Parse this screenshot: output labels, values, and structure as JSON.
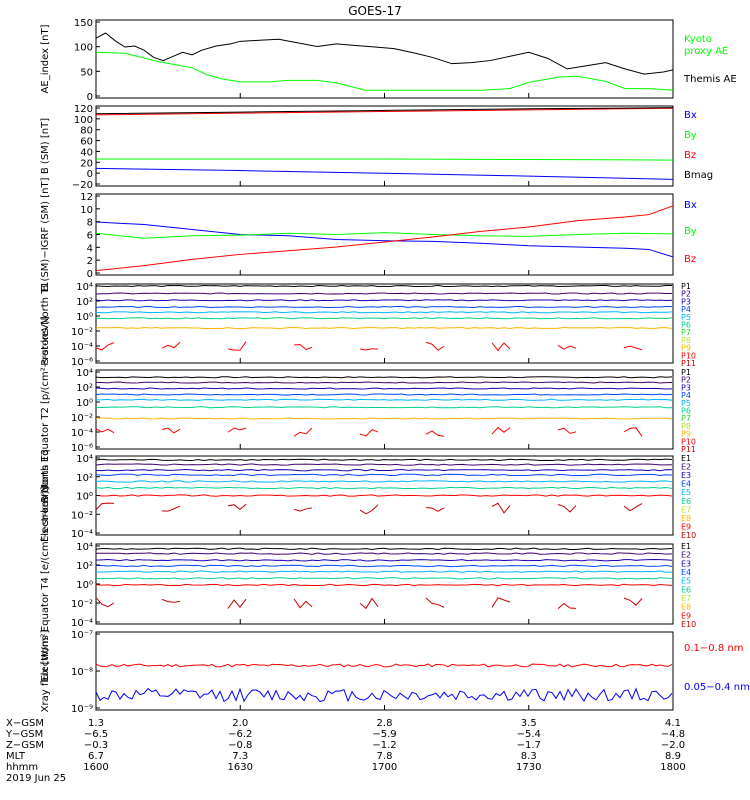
{
  "title": "GOES-17",
  "chart_data": [
    {
      "type": "line",
      "ylabel": "AE_index [nT]",
      "yticks": [
        "150",
        "100",
        "50",
        "0"
      ],
      "ylim": [
        0,
        150
      ],
      "series": [
        {
          "name": "Kyoto proxy AE",
          "color": "#00ff00",
          "x": [
            1600,
            1603,
            1606,
            1610,
            1613,
            1616,
            1620,
            1623,
            1626,
            1630,
            1636,
            1640,
            1646,
            1650,
            1656,
            1700,
            1706,
            1710,
            1716,
            1720,
            1726,
            1730,
            1736,
            1740,
            1746,
            1750,
            1755,
            1800
          ],
          "values": [
            88,
            87,
            86,
            77,
            70,
            65,
            58,
            45,
            37,
            31,
            31,
            34,
            34,
            29,
            15,
            15,
            15,
            15,
            15,
            15,
            18,
            30,
            40,
            42,
            32,
            18,
            18,
            15
          ]
        },
        {
          "name": "Themis AE",
          "color": "#000000",
          "x": [
            1600,
            1602,
            1604,
            1606,
            1608,
            1610,
            1612,
            1614,
            1616,
            1618,
            1620,
            1622,
            1625,
            1628,
            1630,
            1634,
            1638,
            1642,
            1646,
            1650,
            1654,
            1658,
            1702,
            1706,
            1710,
            1714,
            1718,
            1722,
            1726,
            1730,
            1734,
            1738,
            1742,
            1746,
            1750,
            1754,
            1758,
            1800
          ],
          "values": [
            115,
            125,
            110,
            98,
            100,
            92,
            78,
            72,
            80,
            88,
            83,
            92,
            100,
            104,
            109,
            111,
            113,
            106,
            99,
            104,
            101,
            98,
            95,
            87,
            78,
            66,
            68,
            72,
            80,
            88,
            76,
            56,
            62,
            68,
            56,
            46,
            50,
            54
          ]
        }
      ],
      "legend": [
        "Kyoto",
        "proxy AE",
        "Themis AE"
      ]
    },
    {
      "type": "line",
      "ylabel": "B (SM) [nT]",
      "yticks": [
        "120",
        "100",
        "80",
        "60",
        "40",
        "20",
        "0",
        "−20"
      ],
      "ylim": [
        -25,
        120
      ],
      "series": [
        {
          "name": "Bx",
          "color": "#0000ff",
          "x": [
            1600,
            1630,
            1700,
            1730,
            1800
          ],
          "values": [
            7,
            3,
            -2,
            -7,
            -13
          ]
        },
        {
          "name": "By",
          "color": "#00ff00",
          "x": [
            1600,
            1630,
            1700,
            1730,
            1800
          ],
          "values": [
            24,
            24,
            24,
            23,
            22
          ]
        },
        {
          "name": "Bz",
          "color": "#ff0000",
          "x": [
            1600,
            1630,
            1700,
            1730,
            1800
          ],
          "values": [
            104,
            107,
            110,
            113,
            116
          ]
        },
        {
          "name": "Bmag",
          "color": "#000000",
          "x": [
            1600,
            1630,
            1700,
            1730,
            1800
          ],
          "values": [
            106,
            109,
            112,
            115,
            117
          ]
        }
      ]
    },
    {
      "type": "line",
      "ylabel": "B (SM)−IGRF (SM) [nT]",
      "yticks": [
        "12",
        "10",
        "8",
        "6",
        "4",
        "2",
        "0"
      ],
      "ylim": [
        -0.5,
        12.5
      ],
      "series": [
        {
          "name": "Bx",
          "color": "#0000ff",
          "x": [
            1600,
            1610,
            1620,
            1630,
            1640,
            1650,
            1700,
            1710,
            1720,
            1730,
            1740,
            1750,
            1755,
            1800
          ],
          "values": [
            8,
            7.6,
            6.8,
            6,
            5.8,
            5.2,
            5,
            4.9,
            4.6,
            4.2,
            4,
            3.8,
            3.6,
            2.4
          ]
        },
        {
          "name": "By",
          "color": "#00ff00",
          "x": [
            1600,
            1610,
            1620,
            1630,
            1640,
            1650,
            1700,
            1710,
            1720,
            1730,
            1740,
            1750,
            1800
          ],
          "values": [
            6.2,
            5.4,
            5.8,
            5.9,
            6.2,
            6,
            6.3,
            6,
            5.8,
            5.7,
            6,
            6.2,
            6.1
          ]
        },
        {
          "name": "Bz",
          "color": "#ff0000",
          "x": [
            1600,
            1610,
            1620,
            1630,
            1640,
            1650,
            1700,
            1710,
            1720,
            1730,
            1740,
            1750,
            1755,
            1800
          ],
          "values": [
            0.2,
            1,
            2,
            2.8,
            3.4,
            4,
            4.8,
            5.6,
            6.5,
            7.2,
            8.2,
            8.8,
            9.2,
            10.6
          ]
        }
      ]
    },
    {
      "type": "line",
      "ylabel": "Protons North T1",
      "log": true,
      "yticks": [
        "10⁴",
        "10²",
        "10⁰",
        "10⁻²",
        "10⁻⁴",
        "10⁻⁶"
      ],
      "series_labels": [
        "P1",
        "P2",
        "P3",
        "P4",
        "P5",
        "P6",
        "P7",
        "P8",
        "P9",
        "P10",
        "P11"
      ],
      "series_colors": [
        "#000000",
        "#44006e",
        "#1a00b4",
        "#0046ff",
        "#00b4ff",
        "#00d28c",
        "#32d232",
        "#b4e632",
        "#ffb400",
        "#ff0000",
        "#c80000"
      ],
      "levels": [
        4.0,
        3.0,
        2.1,
        1.2,
        0.5,
        -0.3,
        -1.6,
        -4.0
      ]
    },
    {
      "type": "line",
      "ylabel": "Protons Equator T2 [p/(cm²-s-sr-keV)]",
      "log": true,
      "yticks": [
        "10⁴",
        "10²",
        "10⁰",
        "10⁻²",
        "10⁻⁴",
        "10⁻⁶"
      ],
      "series_labels": [
        "P1",
        "P2",
        "P3",
        "P4",
        "P5",
        "P6",
        "P7",
        "P8",
        "P9",
        "P10",
        "P11"
      ],
      "series_colors": [
        "#000000",
        "#44006e",
        "#1a00b4",
        "#0046ff",
        "#00b4ff",
        "#00d28c",
        "#32d232",
        "#b4e632",
        "#ffb400",
        "#ff0000",
        "#c80000"
      ],
      "levels": [
        3.3,
        2.6,
        1.8,
        1.0,
        0.3,
        -0.7,
        -2.2,
        -4.0
      ]
    },
    {
      "type": "line",
      "ylabel": "Electrons North T3",
      "log": true,
      "yticks": [
        "10⁴",
        "10²",
        "10⁰",
        "10⁻²",
        "10⁻⁴"
      ],
      "series_labels": [
        "E1",
        "E2",
        "E3",
        "E4",
        "E5",
        "E6",
        "E7",
        "E8",
        "E9",
        "E10"
      ],
      "series_colors": [
        "#000000",
        "#44006e",
        "#1a00b4",
        "#0046ff",
        "#00b4ff",
        "#00d28c",
        "#b4e632",
        "#ffb400",
        "#ff0000",
        "#c80000"
      ],
      "levels": [
        3.8,
        3.3,
        2.7,
        2.2,
        1.5,
        0.8,
        0.0,
        -1.4
      ]
    },
    {
      "type": "line",
      "ylabel": "Electrons Equator T4 [e/(cm²-s-sr-keV)]",
      "log": true,
      "yticks": [
        "10⁴",
        "10²",
        "10⁰",
        "10⁻²",
        "10⁻⁴"
      ],
      "series_labels": [
        "E1",
        "E2",
        "E3",
        "E4",
        "E5",
        "E6",
        "E7",
        "E8",
        "E9",
        "E10"
      ],
      "series_colors": [
        "#000000",
        "#44006e",
        "#1a00b4",
        "#0046ff",
        "#00b4ff",
        "#00d28c",
        "#b4e632",
        "#ffb400",
        "#ff0000",
        "#c80000"
      ],
      "levels": [
        3.7,
        3.2,
        2.5,
        1.9,
        1.3,
        0.6,
        -0.1,
        -2.0
      ]
    },
    {
      "type": "line",
      "ylabel": "Xray flux [W/m²]",
      "log": true,
      "yticks": [
        "10⁻⁷",
        "10⁻⁸",
        "10⁻⁹"
      ],
      "series": [
        {
          "name": "0.1−0.8 nm",
          "color": "#ff0000",
          "level": -7.85
        },
        {
          "name": "0.05−0.4 nm",
          "color": "#0000ff",
          "level": -8.65
        }
      ]
    }
  ],
  "xaxis": {
    "rows": [
      {
        "label": "X−GSM",
        "values": [
          "1.3",
          "2.0",
          "2.8",
          "3.5",
          "4.1"
        ]
      },
      {
        "label": "Y−GSM",
        "values": [
          "−6.5",
          "−6.2",
          "−5.9",
          "−5.4",
          "−4.8"
        ]
      },
      {
        "label": "Z−GSM",
        "values": [
          "−0.3",
          "−0.8",
          "−1.2",
          "−1.7",
          "−2.0"
        ]
      },
      {
        "label": "MLT",
        "values": [
          "6.7",
          "7.3",
          "7.8",
          "8.3",
          "8.9"
        ]
      },
      {
        "label": "hhmm",
        "values": [
          "1600",
          "1630",
          "1700",
          "1730",
          "1800"
        ]
      }
    ],
    "date": "2019 Jun 25"
  }
}
